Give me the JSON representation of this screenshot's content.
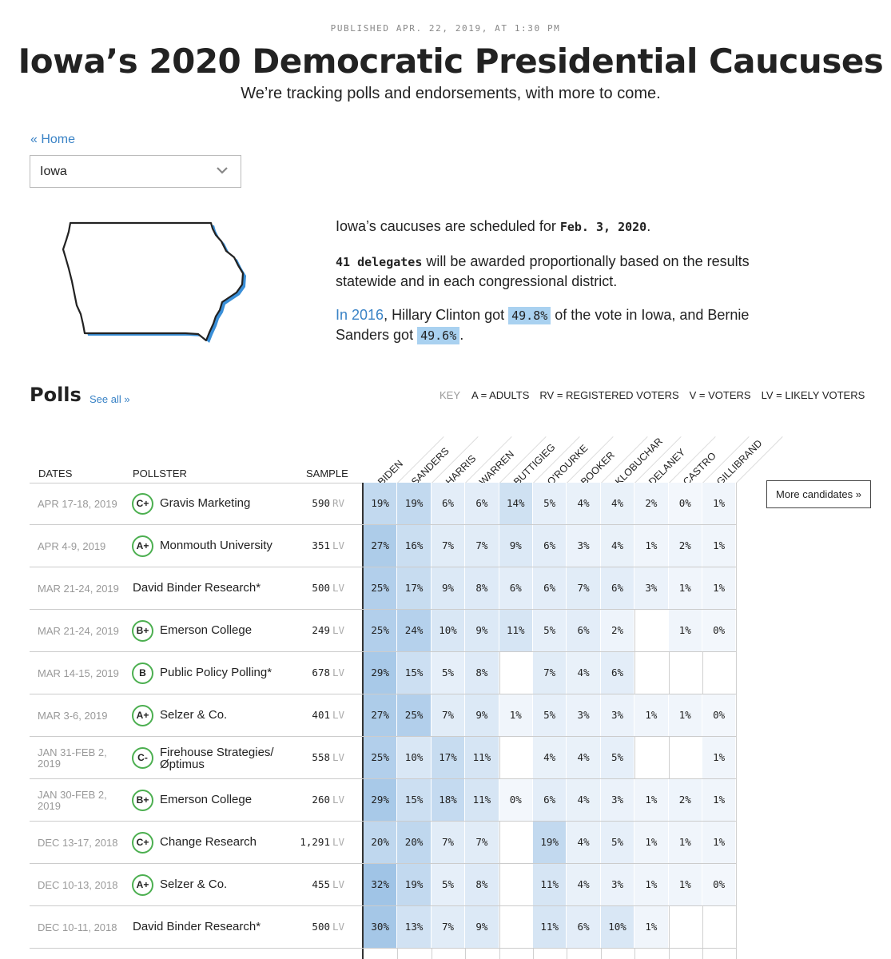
{
  "header": {
    "published": "PUBLISHED APR. 22, 2019, AT 1:30 PM",
    "title": "Iowa’s 2020 Democratic Presidential Caucuses",
    "subtitle": "We’re tracking polls and endorsements, with more to come."
  },
  "nav": {
    "home_label": "« Home",
    "state_select": "Iowa"
  },
  "info": {
    "line1_pre": "Iowa’s caucuses are scheduled for ",
    "caucus_date": "Feb. 3, 2020",
    "line1_post": ".",
    "delegates": "41 delegates",
    "delegates_text": " will be awarded proportionally based on the results statewide and in each congressional district.",
    "in_2016": "In 2016",
    "result_pre": ", Hillary Clinton got ",
    "clinton_pct": "49.8%",
    "result_mid": " of the vote in Iowa, and Bernie Sanders got ",
    "sanders_pct": "49.6%",
    "result_post": "."
  },
  "polls": {
    "title": "Polls",
    "see_all": "See all »",
    "key_label": "KEY",
    "key_items": [
      "A = ADULTS",
      "RV = REGISTERED VOTERS",
      "V = VOTERS",
      "LV = LIKELY VOTERS"
    ],
    "columns": {
      "dates": "DATES",
      "pollster": "POLLSTER",
      "sample": "SAMPLE"
    },
    "candidates": [
      "BIDEN",
      "SANDERS",
      "HARRIS",
      "WARREN",
      "BUTTIGIEG",
      "O'ROURKE",
      "BOOKER",
      "KLOBUCHAR",
      "DELANEY",
      "CASTRO",
      "GILLIBRAND"
    ],
    "more_candidates": "More candidates »",
    "rows": [
      {
        "date": "APR 17-18, 2019",
        "grade": "C+",
        "pollster": "Gravis Marketing",
        "sample": "590",
        "pop": "RV",
        "values": [
          "19%",
          "19%",
          "6%",
          "6%",
          "14%",
          "5%",
          "4%",
          "4%",
          "2%",
          "0%",
          "1%"
        ]
      },
      {
        "date": "APR 4-9, 2019",
        "grade": "A+",
        "pollster": "Monmouth University",
        "sample": "351",
        "pop": "LV",
        "values": [
          "27%",
          "16%",
          "7%",
          "7%",
          "9%",
          "6%",
          "3%",
          "4%",
          "1%",
          "2%",
          "1%"
        ]
      },
      {
        "date": "MAR 21-24, 2019",
        "grade": "",
        "pollster": "David Binder Research*",
        "sample": "500",
        "pop": "LV",
        "values": [
          "25%",
          "17%",
          "9%",
          "8%",
          "6%",
          "6%",
          "7%",
          "6%",
          "3%",
          "1%",
          "1%"
        ]
      },
      {
        "date": "MAR 21-24, 2019",
        "grade": "B+",
        "pollster": "Emerson College",
        "sample": "249",
        "pop": "LV",
        "values": [
          "25%",
          "24%",
          "10%",
          "9%",
          "11%",
          "5%",
          "6%",
          "2%",
          "",
          "1%",
          "0%"
        ]
      },
      {
        "date": "MAR 14-15, 2019",
        "grade": "B",
        "pollster": "Public Policy Polling*",
        "sample": "678",
        "pop": "LV",
        "values": [
          "29%",
          "15%",
          "5%",
          "8%",
          "",
          "7%",
          "4%",
          "6%",
          "",
          "",
          ""
        ]
      },
      {
        "date": "MAR 3-6, 2019",
        "grade": "A+",
        "pollster": "Selzer & Co.",
        "sample": "401",
        "pop": "LV",
        "values": [
          "27%",
          "25%",
          "7%",
          "9%",
          "1%",
          "5%",
          "3%",
          "3%",
          "1%",
          "1%",
          "0%"
        ]
      },
      {
        "date": "JAN 31-FEB 2, 2019",
        "date_l1": "JAN 31-FEB 2,",
        "date_l2": "2019",
        "grade": "C-",
        "pollster": "Firehouse Strategies/ Øptimus",
        "pollster_l1": "Firehouse Strategies/",
        "pollster_l2": "Øptimus",
        "sample": "558",
        "pop": "LV",
        "values": [
          "25%",
          "10%",
          "17%",
          "11%",
          "",
          "4%",
          "4%",
          "5%",
          "",
          "",
          "1%"
        ]
      },
      {
        "date": "JAN 30-FEB 2, 2019",
        "date_l1": "JAN 30-FEB 2,",
        "date_l2": "2019",
        "grade": "B+",
        "pollster": "Emerson College",
        "sample": "260",
        "pop": "LV",
        "values": [
          "29%",
          "15%",
          "18%",
          "11%",
          "0%",
          "6%",
          "4%",
          "3%",
          "1%",
          "2%",
          "1%"
        ]
      },
      {
        "date": "DEC 13-17, 2018",
        "grade": "C+",
        "pollster": "Change Research",
        "sample": "1,291",
        "pop": "LV",
        "values": [
          "20%",
          "20%",
          "7%",
          "7%",
          "",
          "19%",
          "4%",
          "5%",
          "1%",
          "1%",
          "1%"
        ]
      },
      {
        "date": "DEC 10-13, 2018",
        "grade": "A+",
        "pollster": "Selzer & Co.",
        "sample": "455",
        "pop": "LV",
        "values": [
          "32%",
          "19%",
          "5%",
          "8%",
          "",
          "11%",
          "4%",
          "3%",
          "1%",
          "1%",
          "0%"
        ]
      },
      {
        "date": "DEC 10-11, 2018",
        "grade": "",
        "pollster": "David Binder Research*",
        "sample": "500",
        "pop": "LV",
        "values": [
          "30%",
          "13%",
          "7%",
          "9%",
          "",
          "11%",
          "6%",
          "10%",
          "1%",
          "",
          ""
        ]
      }
    ]
  },
  "colors": {
    "link": "#3a83c6",
    "highlight": "#a9d1f0",
    "grade_ring": "#4caf50",
    "cell_base": "#f3f7fc",
    "cell_strong": "#a9c8e8"
  }
}
